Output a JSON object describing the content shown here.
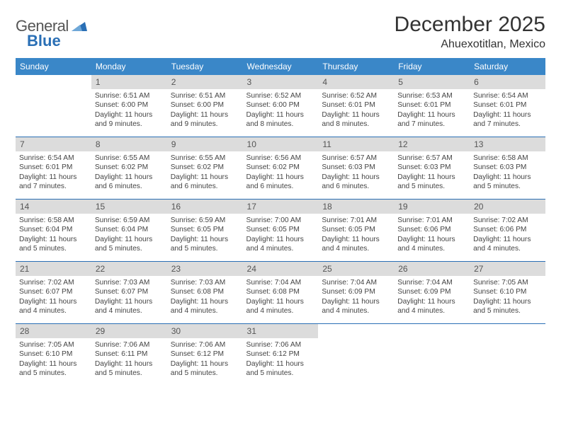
{
  "brand": {
    "word1": "General",
    "word2": "Blue"
  },
  "title": "December 2025",
  "location": "Ahuexotitlan, Mexico",
  "colors": {
    "header_bg": "#3a87c8",
    "header_fg": "#ffffff",
    "daynum_bg": "#dcdcdc",
    "rule": "#2a6fb5",
    "brand_blue": "#2a6fb5"
  },
  "weekdays": [
    "Sunday",
    "Monday",
    "Tuesday",
    "Wednesday",
    "Thursday",
    "Friday",
    "Saturday"
  ],
  "grid": [
    [
      null,
      {
        "n": "1",
        "sr": "6:51 AM",
        "ss": "6:00 PM",
        "dl": "11 hours and 9 minutes."
      },
      {
        "n": "2",
        "sr": "6:51 AM",
        "ss": "6:00 PM",
        "dl": "11 hours and 9 minutes."
      },
      {
        "n": "3",
        "sr": "6:52 AM",
        "ss": "6:00 PM",
        "dl": "11 hours and 8 minutes."
      },
      {
        "n": "4",
        "sr": "6:52 AM",
        "ss": "6:01 PM",
        "dl": "11 hours and 8 minutes."
      },
      {
        "n": "5",
        "sr": "6:53 AM",
        "ss": "6:01 PM",
        "dl": "11 hours and 7 minutes."
      },
      {
        "n": "6",
        "sr": "6:54 AM",
        "ss": "6:01 PM",
        "dl": "11 hours and 7 minutes."
      }
    ],
    [
      {
        "n": "7",
        "sr": "6:54 AM",
        "ss": "6:01 PM",
        "dl": "11 hours and 7 minutes."
      },
      {
        "n": "8",
        "sr": "6:55 AM",
        "ss": "6:02 PM",
        "dl": "11 hours and 6 minutes."
      },
      {
        "n": "9",
        "sr": "6:55 AM",
        "ss": "6:02 PM",
        "dl": "11 hours and 6 minutes."
      },
      {
        "n": "10",
        "sr": "6:56 AM",
        "ss": "6:02 PM",
        "dl": "11 hours and 6 minutes."
      },
      {
        "n": "11",
        "sr": "6:57 AM",
        "ss": "6:03 PM",
        "dl": "11 hours and 6 minutes."
      },
      {
        "n": "12",
        "sr": "6:57 AM",
        "ss": "6:03 PM",
        "dl": "11 hours and 5 minutes."
      },
      {
        "n": "13",
        "sr": "6:58 AM",
        "ss": "6:03 PM",
        "dl": "11 hours and 5 minutes."
      }
    ],
    [
      {
        "n": "14",
        "sr": "6:58 AM",
        "ss": "6:04 PM",
        "dl": "11 hours and 5 minutes."
      },
      {
        "n": "15",
        "sr": "6:59 AM",
        "ss": "6:04 PM",
        "dl": "11 hours and 5 minutes."
      },
      {
        "n": "16",
        "sr": "6:59 AM",
        "ss": "6:05 PM",
        "dl": "11 hours and 5 minutes."
      },
      {
        "n": "17",
        "sr": "7:00 AM",
        "ss": "6:05 PM",
        "dl": "11 hours and 4 minutes."
      },
      {
        "n": "18",
        "sr": "7:01 AM",
        "ss": "6:05 PM",
        "dl": "11 hours and 4 minutes."
      },
      {
        "n": "19",
        "sr": "7:01 AM",
        "ss": "6:06 PM",
        "dl": "11 hours and 4 minutes."
      },
      {
        "n": "20",
        "sr": "7:02 AM",
        "ss": "6:06 PM",
        "dl": "11 hours and 4 minutes."
      }
    ],
    [
      {
        "n": "21",
        "sr": "7:02 AM",
        "ss": "6:07 PM",
        "dl": "11 hours and 4 minutes."
      },
      {
        "n": "22",
        "sr": "7:03 AM",
        "ss": "6:07 PM",
        "dl": "11 hours and 4 minutes."
      },
      {
        "n": "23",
        "sr": "7:03 AM",
        "ss": "6:08 PM",
        "dl": "11 hours and 4 minutes."
      },
      {
        "n": "24",
        "sr": "7:04 AM",
        "ss": "6:08 PM",
        "dl": "11 hours and 4 minutes."
      },
      {
        "n": "25",
        "sr": "7:04 AM",
        "ss": "6:09 PM",
        "dl": "11 hours and 4 minutes."
      },
      {
        "n": "26",
        "sr": "7:04 AM",
        "ss": "6:09 PM",
        "dl": "11 hours and 4 minutes."
      },
      {
        "n": "27",
        "sr": "7:05 AM",
        "ss": "6:10 PM",
        "dl": "11 hours and 5 minutes."
      }
    ],
    [
      {
        "n": "28",
        "sr": "7:05 AM",
        "ss": "6:10 PM",
        "dl": "11 hours and 5 minutes."
      },
      {
        "n": "29",
        "sr": "7:06 AM",
        "ss": "6:11 PM",
        "dl": "11 hours and 5 minutes."
      },
      {
        "n": "30",
        "sr": "7:06 AM",
        "ss": "6:12 PM",
        "dl": "11 hours and 5 minutes."
      },
      {
        "n": "31",
        "sr": "7:06 AM",
        "ss": "6:12 PM",
        "dl": "11 hours and 5 minutes."
      },
      null,
      null,
      null
    ]
  ],
  "labels": {
    "sunrise": "Sunrise:",
    "sunset": "Sunset:",
    "daylight": "Daylight:"
  }
}
